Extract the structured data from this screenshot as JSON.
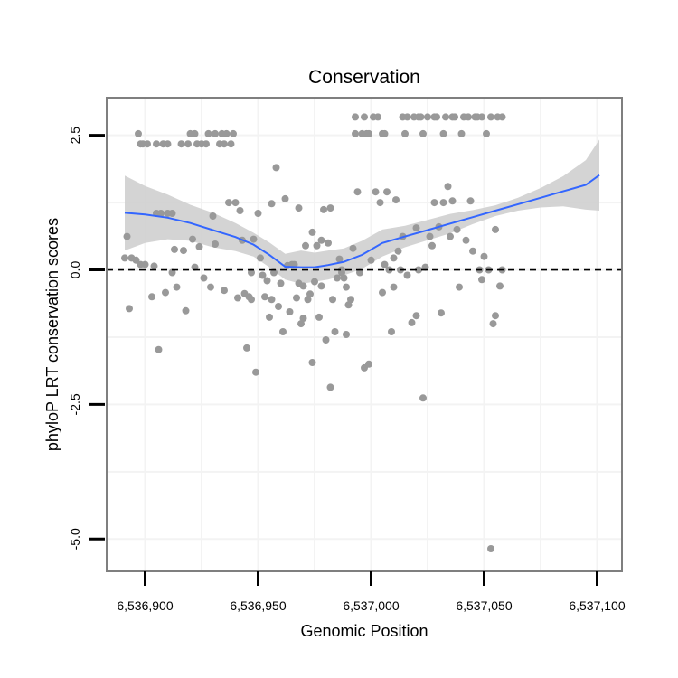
{
  "chart_data": {
    "type": "scatter",
    "title": "Conservation",
    "xlabel": "Genomic Position",
    "ylabel": "phyloP LRT conservation scores",
    "xlim": [
      6536883,
      6537111
    ],
    "ylim": [
      -5.6,
      3.2
    ],
    "x_ticks": [
      6536900,
      6536950,
      6537000,
      6537050,
      6537100
    ],
    "x_tick_labels": [
      "6,536,900",
      "6,536,950",
      "6,537,000",
      "6,537,050",
      "6,537,100"
    ],
    "y_ticks": [
      2.5,
      0.0,
      -2.5,
      -5.0
    ],
    "y_tick_labels": [
      "2.5",
      "0.0",
      "-2.5",
      "-5.0"
    ],
    "reference_line": {
      "y": 0,
      "style": "dashed"
    },
    "colors": {
      "points": "#999999",
      "smooth": "#3366ff",
      "ribbon": "#cccccc",
      "reference": "#000000",
      "frame": "#7f7f7f",
      "grid": "#f3f3f3"
    },
    "series": [
      {
        "name": "scores",
        "points": [
          [
            6536891,
            0.22
          ],
          [
            6536892,
            0.62
          ],
          [
            6536893,
            -0.72
          ],
          [
            6536894,
            0.22
          ],
          [
            6536896,
            0.18
          ],
          [
            6536897,
            2.53
          ],
          [
            6536898,
            2.34
          ],
          [
            6536898,
            0.1
          ],
          [
            6536899,
            2.34
          ],
          [
            6536900,
            0.1
          ],
          [
            6536901,
            2.34
          ],
          [
            6536903,
            -0.5
          ],
          [
            6536904,
            0.07
          ],
          [
            6536905,
            2.34
          ],
          [
            6536905,
            1.05
          ],
          [
            6536906,
            -1.48
          ],
          [
            6536907,
            1.05
          ],
          [
            6536908,
            2.34
          ],
          [
            6536909,
            -0.42
          ],
          [
            6536910,
            2.34
          ],
          [
            6536910,
            1.05
          ],
          [
            6536912,
            -0.05
          ],
          [
            6536912,
            1.05
          ],
          [
            6536913,
            0.38
          ],
          [
            6536914,
            -0.32
          ],
          [
            6536916,
            2.34
          ],
          [
            6536917,
            0.36
          ],
          [
            6536918,
            -0.76
          ],
          [
            6536919,
            2.34
          ],
          [
            6536920,
            2.53
          ],
          [
            6536921,
            0.57
          ],
          [
            6536922,
            0.05
          ],
          [
            6536922,
            2.53
          ],
          [
            6536923,
            2.34
          ],
          [
            6536924,
            0.43
          ],
          [
            6536925,
            2.34
          ],
          [
            6536926,
            -0.15
          ],
          [
            6536927,
            2.34
          ],
          [
            6536928,
            2.53
          ],
          [
            6536929,
            -0.32
          ],
          [
            6536930,
            1.0
          ],
          [
            6536931,
            0.48
          ],
          [
            6536931,
            2.53
          ],
          [
            6536933,
            2.34
          ],
          [
            6536934,
            2.53
          ],
          [
            6536935,
            -0.38
          ],
          [
            6536935,
            2.34
          ],
          [
            6536936,
            2.53
          ],
          [
            6536937,
            1.25
          ],
          [
            6536938,
            2.34
          ],
          [
            6536939,
            2.53
          ],
          [
            6536940,
            1.25
          ],
          [
            6536941,
            -0.52
          ],
          [
            6536942,
            1.1
          ],
          [
            6536943,
            0.55
          ],
          [
            6536944,
            -0.44
          ],
          [
            6536945,
            -1.45
          ],
          [
            6536946,
            -0.5
          ],
          [
            6536947,
            -0.55
          ],
          [
            6536947,
            -0.05
          ],
          [
            6536948,
            0.57
          ],
          [
            6536949,
            -1.9
          ],
          [
            6536950,
            1.05
          ],
          [
            6536951,
            0.22
          ],
          [
            6536952,
            -0.1
          ],
          [
            6536953,
            -0.5
          ],
          [
            6536954,
            -0.2
          ],
          [
            6536955,
            -0.88
          ],
          [
            6536956,
            1.23
          ],
          [
            6536956,
            -0.55
          ],
          [
            6536957,
            -0.05
          ],
          [
            6536958,
            1.9
          ],
          [
            6536959,
            -0.68
          ],
          [
            6536960,
            -0.25
          ],
          [
            6536961,
            -1.15
          ],
          [
            6536962,
            1.32
          ],
          [
            6536963,
            0.08
          ],
          [
            6536964,
            -0.78
          ],
          [
            6536965,
            0.1
          ],
          [
            6536966,
            0.1
          ],
          [
            6536967,
            -0.52
          ],
          [
            6536968,
            1.15
          ],
          [
            6536968,
            -0.25
          ],
          [
            6536969,
            -1.0
          ],
          [
            6536970,
            -0.9
          ],
          [
            6536970,
            -0.3
          ],
          [
            6536971,
            0.45
          ],
          [
            6536972,
            -0.55
          ],
          [
            6536973,
            -0.45
          ],
          [
            6536974,
            0.7
          ],
          [
            6536974,
            -1.72
          ],
          [
            6536975,
            -0.22
          ],
          [
            6536976,
            0.45
          ],
          [
            6536977,
            -0.88
          ],
          [
            6536978,
            -0.3
          ],
          [
            6536978,
            0.55
          ],
          [
            6536979,
            1.12
          ],
          [
            6536980,
            -1.3
          ],
          [
            6536981,
            0.5
          ],
          [
            6536982,
            -2.18
          ],
          [
            6536982,
            1.15
          ],
          [
            6536983,
            -0.55
          ],
          [
            6536984,
            -1.15
          ],
          [
            6536985,
            -0.15
          ],
          [
            6536986,
            0.2
          ],
          [
            6536987,
            0.0
          ],
          [
            6536987,
            -0.05
          ],
          [
            6536988,
            -0.15
          ],
          [
            6536989,
            -0.32
          ],
          [
            6536989,
            -1.2
          ],
          [
            6536990,
            -0.65
          ],
          [
            6536991,
            -0.55
          ],
          [
            6536992,
            0.4
          ],
          [
            6536993,
            2.84
          ],
          [
            6536993,
            2.53
          ],
          [
            6536994,
            1.45
          ],
          [
            6536995,
            -0.05
          ],
          [
            6536996,
            2.53
          ],
          [
            6536997,
            2.84
          ],
          [
            6536997,
            -1.82
          ],
          [
            6536998,
            2.53
          ],
          [
            6536999,
            -1.75
          ],
          [
            6536999,
            2.53
          ],
          [
            6537000,
            0.18
          ],
          [
            6537001,
            2.84
          ],
          [
            6537002,
            1.45
          ],
          [
            6537003,
            2.84
          ],
          [
            6537004,
            1.25
          ],
          [
            6537005,
            2.53
          ],
          [
            6537005,
            -0.42
          ],
          [
            6537006,
            0.1
          ],
          [
            6537006,
            2.53
          ],
          [
            6537007,
            1.45
          ],
          [
            6537008,
            0.0
          ],
          [
            6537009,
            -1.15
          ],
          [
            6537010,
            0.22
          ],
          [
            6537010,
            -0.32
          ],
          [
            6537011,
            1.3
          ],
          [
            6537012,
            0.35
          ],
          [
            6537013,
            0.0
          ],
          [
            6537014,
            0.62
          ],
          [
            6537014,
            2.84
          ],
          [
            6537015,
            2.53
          ],
          [
            6537016,
            -0.1
          ],
          [
            6537016,
            2.84
          ],
          [
            6537018,
            -0.98
          ],
          [
            6537019,
            2.84
          ],
          [
            6537020,
            0.78
          ],
          [
            6537020,
            -0.85
          ],
          [
            6537021,
            0.0
          ],
          [
            6537021,
            2.84
          ],
          [
            6537022,
            2.84
          ],
          [
            6537023,
            -2.38
          ],
          [
            6537023,
            2.53
          ],
          [
            6537024,
            0.05
          ],
          [
            6537025,
            2.84
          ],
          [
            6537026,
            0.62
          ],
          [
            6537027,
            0.45
          ],
          [
            6537028,
            2.84
          ],
          [
            6537028,
            1.25
          ],
          [
            6537029,
            2.84
          ],
          [
            6537030,
            0.8
          ],
          [
            6537031,
            -0.8
          ],
          [
            6537032,
            1.25
          ],
          [
            6537032,
            2.53
          ],
          [
            6537033,
            2.84
          ],
          [
            6537034,
            1.55
          ],
          [
            6537035,
            0.62
          ],
          [
            6537036,
            1.28
          ],
          [
            6537036,
            2.84
          ],
          [
            6537037,
            2.84
          ],
          [
            6537038,
            0.75
          ],
          [
            6537039,
            -0.32
          ],
          [
            6537040,
            2.53
          ],
          [
            6537041,
            2.84
          ],
          [
            6537042,
            0.55
          ],
          [
            6537043,
            2.84
          ],
          [
            6537044,
            1.28
          ],
          [
            6537045,
            0.35
          ],
          [
            6537046,
            2.84
          ],
          [
            6537047,
            2.84
          ],
          [
            6537048,
            0.0
          ],
          [
            6537049,
            -0.18
          ],
          [
            6537049,
            2.84
          ],
          [
            6537050,
            0.25
          ],
          [
            6537051,
            2.53
          ],
          [
            6537052,
            0.0
          ],
          [
            6537053,
            -5.18
          ],
          [
            6537053,
            2.84
          ],
          [
            6537054,
            -1.0
          ],
          [
            6537055,
            -0.85
          ],
          [
            6537055,
            0.75
          ],
          [
            6537056,
            2.84
          ],
          [
            6537057,
            -0.3
          ],
          [
            6537058,
            0.0
          ],
          [
            6537058,
            2.84
          ]
        ],
        "smooth": {
          "x": [
            6536891,
            6536900,
            6536910,
            6536920,
            6536930,
            6536940,
            6536948,
            6536955,
            6536962,
            6536969,
            6536975,
            6536981,
            6536988,
            6536996,
            6537005,
            6537015,
            6537025,
            6537035,
            6537045,
            6537055,
            6537065,
            6537075,
            6537085,
            6537095,
            6537101
          ],
          "y": [
            1.06,
            1.03,
            0.97,
            0.87,
            0.74,
            0.61,
            0.47,
            0.28,
            0.06,
            0.05,
            0.05,
            0.09,
            0.15,
            0.28,
            0.5,
            0.62,
            0.74,
            0.86,
            0.98,
            1.1,
            1.22,
            1.34,
            1.46,
            1.58,
            1.76
          ],
          "lower": [
            0.36,
            0.5,
            0.57,
            0.54,
            0.42,
            0.35,
            0.25,
            0.05,
            -0.18,
            -0.26,
            -0.22,
            -0.18,
            -0.1,
            0.02,
            0.25,
            0.42,
            0.55,
            0.68,
            0.85,
            1.0,
            1.1,
            1.16,
            1.18,
            1.12,
            1.1
          ],
          "upper": [
            1.75,
            1.56,
            1.4,
            1.21,
            1.06,
            0.87,
            0.69,
            0.51,
            0.3,
            0.36,
            0.32,
            0.36,
            0.4,
            0.54,
            0.75,
            0.82,
            0.93,
            1.04,
            1.11,
            1.2,
            1.34,
            1.52,
            1.74,
            2.04,
            2.42
          ]
        }
      }
    ]
  }
}
